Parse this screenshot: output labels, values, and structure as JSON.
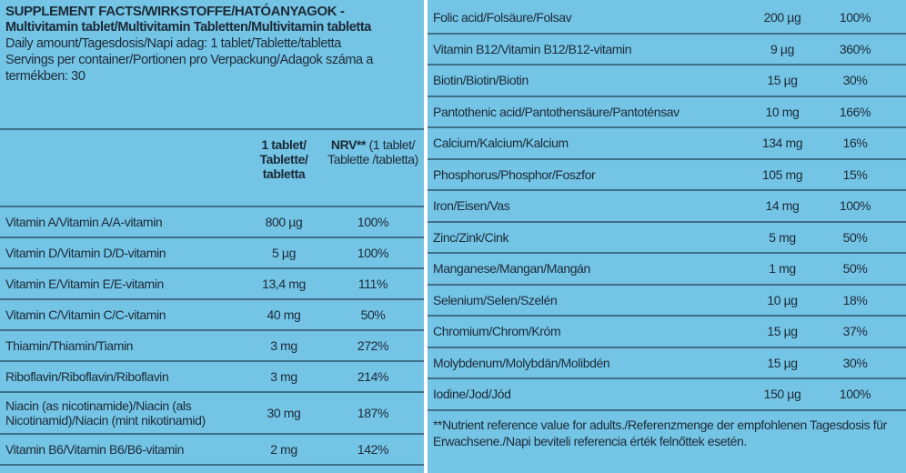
{
  "header": {
    "title": "SUPPLEMENT FACTS/WIRKSTOFFE/HATÓANYAGOK -",
    "subtitle": "Multivitamin tablet/Multivitamin Tabletten/Multivitamin tabletta",
    "daily_amount": "Daily amount/Tagesdosis/Napi adag: 1 tablet/Tablette/tabletta",
    "servings": "Servings per container/Portionen pro Verpackung/Adagok száma a termékben: 30"
  },
  "table_header": {
    "amount": "1 tablet/ Tablette/ tabletta",
    "nrv_bold": "NRV**",
    "nrv_rest": "(1 tablet/ Tablette /tabletta)"
  },
  "left_rows": [
    [
      "Vitamin A/Vitamin A/A-vitamin",
      "800 µg",
      "100%"
    ],
    [
      "Vitamin D/Vitamin D/D-vitamin",
      "5 µg",
      "100%"
    ],
    [
      "Vitamin E/Vitamin E/E-vitamin",
      "13,4 mg",
      "111%"
    ],
    [
      "Vitamin C/Vitamin C/C-vitamin",
      "40 mg",
      "50%"
    ],
    [
      "Thiamin/Thiamin/Tiamin",
      "3 mg",
      "272%"
    ],
    [
      "Riboflavin/Riboflavin/Riboflavin",
      "3 mg",
      "214%"
    ],
    [
      "Niacin (as nicotinamide)/Niacin (als Nicotinamid)/Niacin (mint nikotinamid)",
      "30 mg",
      "187%"
    ],
    [
      "Vitamin B6/Vitamin B6/B6-vitamin",
      "2 mg",
      "142%"
    ]
  ],
  "right_rows": [
    [
      "Folic acid/Folsäure/Folsav",
      "200 µg",
      "100%"
    ],
    [
      "Vitamin B12/Vitamin B12/B12-vitamin",
      "9 µg",
      "360%"
    ],
    [
      "Biotin/Biotin/Biotin",
      "15 µg",
      "30%"
    ],
    [
      "Pantothenic acid/Pantothensäure/Pantoténsav",
      "10 mg",
      "166%"
    ],
    [
      "Calcium/Kalcium/Kalcium",
      "134 mg",
      "16%"
    ],
    [
      "Phosphorus/Phosphor/Foszfor",
      "105 mg",
      "15%"
    ],
    [
      "Iron/Eisen/Vas",
      "14 mg",
      "100%"
    ],
    [
      "Zinc/Zink/Cink",
      "5 mg",
      "50%"
    ],
    [
      "Manganese/Mangan/Mangán",
      "1 mg",
      "50%"
    ],
    [
      "Selenium/Selen/Szelén",
      "10 µg",
      "18%"
    ],
    [
      "Chromium/Chrom/Króm",
      "15 µg",
      "37%"
    ],
    [
      "Molybdenum/Molybdän/Molibdén",
      "15 µg",
      "30%"
    ],
    [
      "Iodine/Jod/Jód",
      "150 µg",
      "100%"
    ]
  ],
  "footnote": "**Nutrient reference value for adults./Referenzmenge der empfohlenen Tagesdosis für Erwachsene./Napi beviteli referencia érték felnőttek esetén."
}
